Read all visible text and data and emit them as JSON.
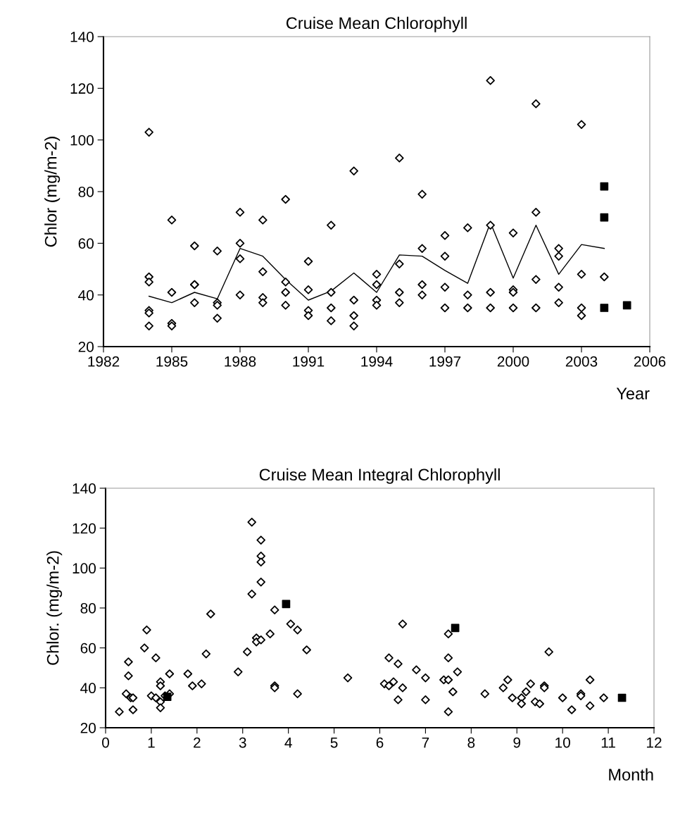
{
  "chart_data": [
    {
      "type": "scatter",
      "title": "Cruise Mean Chlorophyll",
      "xlabel": "Year",
      "ylabel": "Chlor (mg/m-2)",
      "xlim": [
        1982,
        2006
      ],
      "xticks": [
        1982,
        1985,
        1988,
        1991,
        1994,
        1997,
        2000,
        2003,
        2006
      ],
      "ylim": [
        20,
        140
      ],
      "yticks": [
        20,
        40,
        60,
        80,
        100,
        120,
        140
      ],
      "grid": false,
      "legend": false,
      "series": [
        {
          "marker": "diamond",
          "color": "#000000",
          "x": [
            1984,
            1984,
            1984,
            1984,
            1984,
            1984,
            1985,
            1985,
            1985,
            1985,
            1986,
            1986,
            1986,
            1986,
            1987,
            1987,
            1987,
            1987,
            1988,
            1988,
            1988,
            1988,
            1989,
            1989,
            1989,
            1989,
            1990,
            1990,
            1990,
            1990,
            1991,
            1991,
            1991,
            1991,
            1992,
            1992,
            1992,
            1992,
            1993,
            1993,
            1993,
            1993,
            1994,
            1994,
            1994,
            1994,
            1995,
            1995,
            1995,
            1995,
            1996,
            1996,
            1996,
            1996,
            1997,
            1997,
            1997,
            1997,
            1998,
            1998,
            1998,
            1999,
            1999,
            1999,
            1999,
            2000,
            2000,
            2000,
            2000,
            2001,
            2001,
            2001,
            2001,
            2002,
            2002,
            2002,
            2002,
            2003,
            2003,
            2003,
            2003,
            2004
          ],
          "values": [
            103,
            47,
            45,
            34,
            33,
            28,
            69,
            41,
            29,
            28,
            59,
            44,
            44,
            37,
            57,
            37,
            36,
            31,
            72,
            60,
            54,
            40,
            69,
            49,
            39,
            37,
            77,
            45,
            41,
            36,
            53,
            42,
            34,
            32,
            67,
            41,
            35,
            30,
            88,
            38,
            32,
            28,
            48,
            44,
            38,
            36,
            93,
            52,
            41,
            37,
            79,
            58,
            44,
            40,
            63,
            55,
            43,
            35,
            66,
            40,
            35,
            123,
            67,
            41,
            35,
            64,
            42,
            41,
            35,
            114,
            72,
            46,
            35,
            58,
            55,
            43,
            37,
            106,
            48,
            35,
            32,
            47
          ]
        },
        {
          "marker": "square",
          "color": "#000000",
          "x": [
            2004,
            2004,
            2004,
            2005
          ],
          "values": [
            82,
            70,
            35,
            36
          ]
        },
        {
          "type": "line",
          "marker": "none",
          "color": "#000000",
          "x": [
            1984,
            1985,
            1986,
            1987,
            1988,
            1989,
            1990,
            1991,
            1992,
            1993,
            1994,
            1995,
            1996,
            1997,
            1998,
            1999,
            2000,
            2001,
            2002,
            2003,
            2004
          ],
          "values": [
            39.5,
            37,
            41,
            38.5,
            58,
            55,
            46,
            38,
            41.5,
            48.5,
            41,
            55.5,
            55,
            49.5,
            44.5,
            68,
            46.5,
            67,
            48,
            59.5,
            58
          ]
        }
      ]
    },
    {
      "type": "scatter",
      "title": "Cruise Mean Integral Chlorophyll",
      "xlabel": "Month",
      "ylabel": "Chlor. (mg/m-2)",
      "xlim": [
        0,
        12
      ],
      "xticks": [
        0,
        1,
        2,
        3,
        4,
        5,
        6,
        7,
        8,
        9,
        10,
        11,
        12
      ],
      "ylim": [
        20,
        140
      ],
      "yticks": [
        20,
        40,
        60,
        80,
        100,
        120,
        140
      ],
      "grid": false,
      "legend": false,
      "series": [
        {
          "marker": "diamond",
          "color": "#000000",
          "x": [
            0.3,
            0.45,
            0.5,
            0.5,
            0.55,
            0.6,
            0.6,
            0.85,
            0.9,
            1.0,
            1.1,
            1.1,
            1.2,
            1.2,
            1.2,
            1.2,
            1.3,
            1.4,
            1.4,
            1.8,
            1.9,
            2.1,
            2.2,
            2.3,
            2.9,
            3.1,
            3.2,
            3.2,
            3.3,
            3.3,
            3.4,
            3.4,
            3.4,
            3.4,
            3.4,
            3.6,
            3.7,
            3.7,
            3.7,
            4.05,
            4.2,
            4.2,
            4.4,
            5.3,
            6.1,
            6.2,
            6.3,
            6.2,
            6.4,
            6.4,
            6.5,
            6.5,
            6.8,
            7.0,
            7.0,
            7.4,
            7.5,
            7.5,
            7.5,
            7.5,
            7.6,
            7.7,
            8.3,
            8.7,
            8.8,
            8.9,
            9.1,
            9.1,
            9.2,
            9.3,
            9.4,
            9.5,
            9.6,
            9.6,
            9.7,
            10.0,
            10.2,
            10.4,
            10.4,
            10.6,
            10.6,
            10.9
          ],
          "values": [
            28,
            37,
            53,
            46,
            35,
            29,
            35,
            60,
            69,
            36,
            55,
            35,
            43,
            41,
            33,
            30,
            36,
            47,
            37,
            47,
            41,
            42,
            57,
            77,
            48,
            58,
            123,
            87,
            65,
            63,
            114,
            106,
            103,
            93,
            64,
            67,
            79,
            41,
            40,
            72,
            69,
            37,
            59,
            45,
            42,
            41,
            43,
            55,
            52,
            34,
            40,
            72,
            49,
            34,
            45,
            44,
            67,
            55,
            44,
            28,
            38,
            48,
            37,
            40,
            44,
            35,
            35,
            32,
            38,
            42,
            33,
            32,
            41,
            40,
            58,
            35,
            29,
            37,
            36,
            44,
            31,
            35
          ]
        },
        {
          "marker": "square",
          "color": "#000000",
          "x": [
            1.35,
            3.95,
            7.65,
            11.3
          ],
          "values": [
            35.5,
            82,
            70,
            35
          ]
        }
      ]
    }
  ]
}
